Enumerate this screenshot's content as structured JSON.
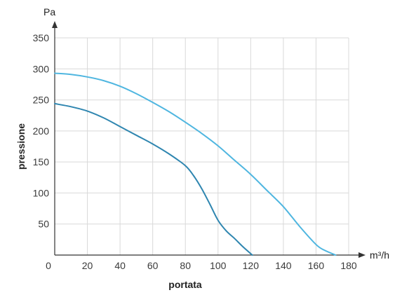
{
  "chart_data": {
    "type": "line",
    "xlabel": "portata",
    "ylabel": "pressione",
    "x_unit": "m³/h",
    "y_unit": "Pa",
    "xlim": [
      0,
      180
    ],
    "ylim": [
      0,
      350
    ],
    "x_ticks": [
      0,
      20,
      40,
      60,
      80,
      100,
      120,
      140,
      160,
      180
    ],
    "y_ticks": [
      50,
      100,
      150,
      200,
      250,
      300,
      350
    ],
    "grid": true,
    "series": [
      {
        "color": "#2f86b0",
        "x": [
          0,
          10,
          20,
          30,
          40,
          50,
          60,
          70,
          80,
          85,
          90,
          95,
          100,
          105,
          110,
          115,
          121
        ],
        "y": [
          244,
          239,
          232,
          221,
          207,
          193,
          179,
          163,
          144,
          128,
          107,
          82,
          56,
          39,
          27,
          14,
          0
        ]
      },
      {
        "color": "#4fb6e0",
        "x": [
          0,
          10,
          20,
          30,
          40,
          50,
          60,
          70,
          80,
          90,
          100,
          110,
          120,
          130,
          140,
          150,
          160,
          165,
          172
        ],
        "y": [
          293,
          291,
          287,
          281,
          272,
          260,
          246,
          231,
          214,
          196,
          176,
          153,
          130,
          104,
          78,
          46,
          17,
          8,
          0
        ]
      }
    ]
  }
}
